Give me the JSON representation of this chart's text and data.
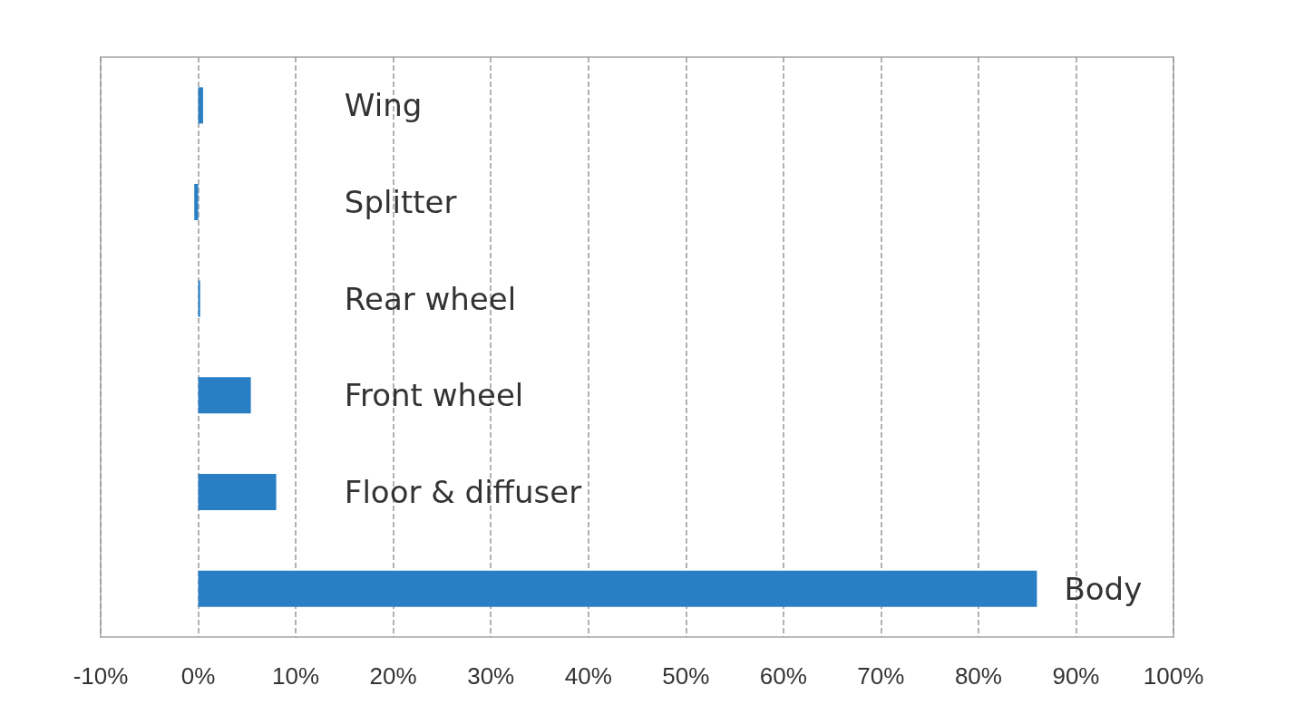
{
  "chart_data": {
    "type": "bar",
    "orientation": "horizontal",
    "categories": [
      "Wing",
      "Splitter",
      "Rear wheel",
      "Front wheel",
      "Floor & diffuser",
      "Body"
    ],
    "values": [
      0.5,
      -0.4,
      0.2,
      5.4,
      8,
      86
    ],
    "color": "#2a7fc4",
    "xlim": [
      -10,
      100
    ],
    "xticks": [
      {
        "value": -10,
        "label": "-10%"
      },
      {
        "value": 0,
        "label": "0%"
      },
      {
        "value": 10,
        "label": "10%"
      },
      {
        "value": 20,
        "label": "20%"
      },
      {
        "value": 30,
        "label": "30%"
      },
      {
        "value": 40,
        "label": "40%"
      },
      {
        "value": 50,
        "label": "50%"
      },
      {
        "value": 60,
        "label": "60%"
      },
      {
        "value": 70,
        "label": "70%"
      },
      {
        "value": 80,
        "label": "80%"
      },
      {
        "value": 90,
        "label": "90%"
      },
      {
        "value": 100,
        "label": "100%"
      }
    ],
    "grid": "x"
  }
}
